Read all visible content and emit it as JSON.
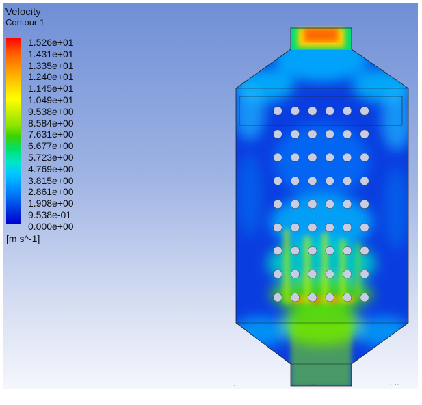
{
  "legend": {
    "title": "Velocity",
    "subtitle": "Contour 1",
    "unit": "[m s^-1]",
    "labels": [
      "1.526e+01",
      "1.431e+01",
      "1.335e+01",
      "1.240e+01",
      "1.145e+01",
      "1.049e+01",
      "9.538e+00",
      "8.584e+00",
      "7.631e+00",
      "6.677e+00",
      "5.723e+00",
      "4.769e+00",
      "3.815e+00",
      "2.861e+00",
      "1.908e+00",
      "9.538e-01",
      "0.000e+00"
    ]
  },
  "colors": {
    "background_top": "#6f8fd6",
    "background_bottom": "#f4f6fc",
    "low_velocity": "#0a3de0",
    "mid_velocity": "#00c8ff",
    "high_velocity": "#ffff00",
    "max_velocity": "#ff2a00"
  },
  "tube_bank": {
    "rows": 9,
    "columns": 6
  }
}
